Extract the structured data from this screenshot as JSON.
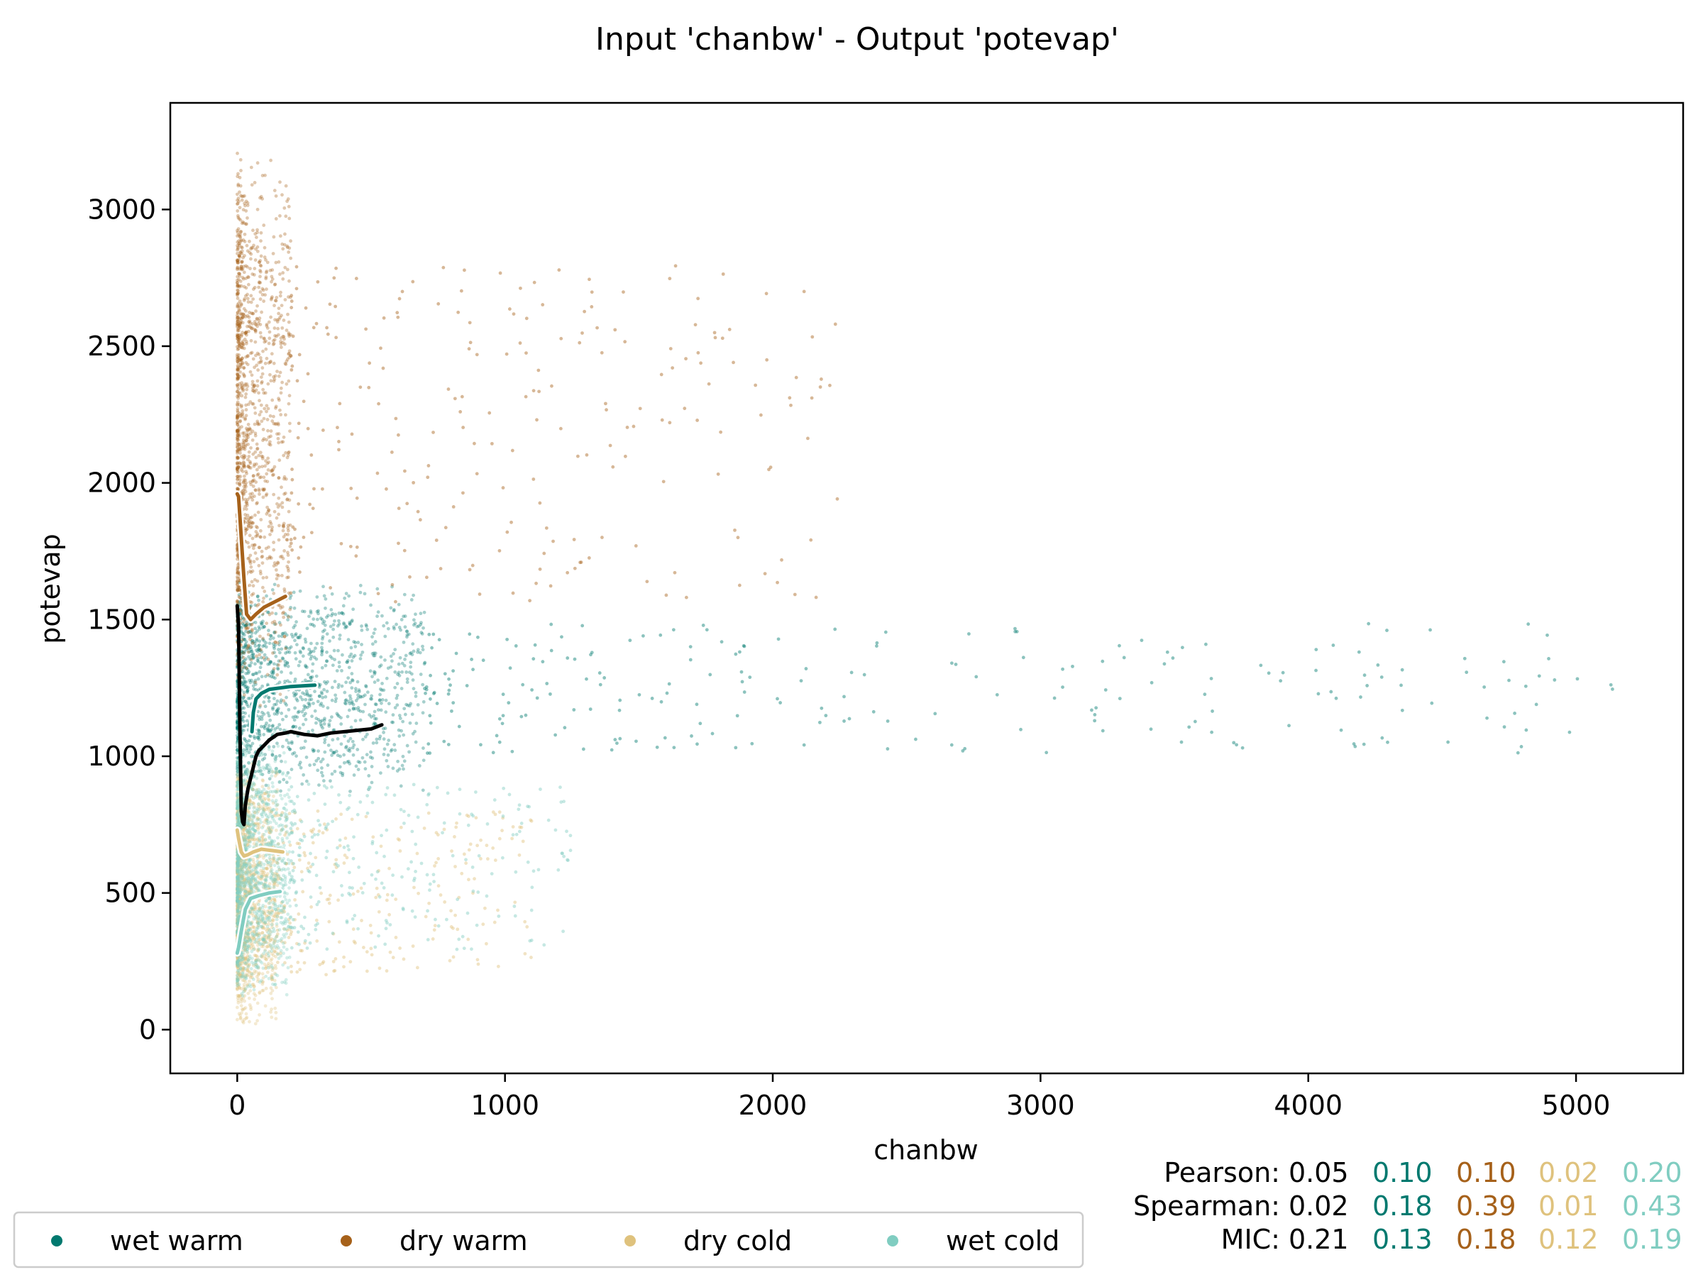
{
  "chart_data": {
    "type": "scatter",
    "title": "Input 'chanbw' - Output 'potevap'",
    "xlabel": "chanbw",
    "ylabel": "potevap",
    "xlim": [
      -250,
      5400
    ],
    "ylim": [
      -160,
      3390
    ],
    "xticks": [
      0,
      1000,
      2000,
      3000,
      4000,
      5000
    ],
    "yticks": [
      0,
      500,
      1000,
      1500,
      2000,
      2500,
      3000
    ],
    "grid": false,
    "legend_position": "bottom-left, below plot",
    "colors": {
      "wet_warm": "#01796f",
      "dry_warm": "#a6611a",
      "dry_cold": "#dfc27d",
      "wet_cold": "#80cdc1",
      "overall": "#000000"
    },
    "series": [
      {
        "name": "wet warm",
        "color": "#01796f",
        "point_cloud": {
          "x_range": [
            0,
            5150
          ],
          "y_range": [
            850,
            1650
          ],
          "dense_x_max": 700
        },
        "trend": {
          "x": [
            55,
            60,
            70,
            90,
            120,
            160,
            200,
            250,
            290
          ],
          "y": [
            1090,
            1160,
            1210,
            1230,
            1245,
            1250,
            1255,
            1258,
            1260
          ]
        }
      },
      {
        "name": "dry warm",
        "color": "#a6611a",
        "point_cloud": {
          "x_range": [
            0,
            2250
          ],
          "y_range": [
            1150,
            3220
          ],
          "dense_x_max": 200
        },
        "trend": {
          "x": [
            0,
            5,
            15,
            25,
            35,
            50,
            70,
            100,
            140,
            180
          ],
          "y": [
            1960,
            1950,
            1800,
            1650,
            1520,
            1500,
            1520,
            1545,
            1565,
            1585
          ]
        }
      },
      {
        "name": "dry cold",
        "color": "#dfc27d",
        "point_cloud": {
          "x_range": [
            0,
            1100
          ],
          "y_range": [
            0,
            1000
          ],
          "dense_x_max": 150
        },
        "trend": {
          "x": [
            0,
            5,
            15,
            25,
            40,
            60,
            90,
            130,
            170
          ],
          "y": [
            730,
            700,
            650,
            635,
            640,
            650,
            660,
            655,
            650
          ]
        }
      },
      {
        "name": "wet cold",
        "color": "#80cdc1",
        "point_cloud": {
          "x_range": [
            0,
            1250
          ],
          "y_range": [
            90,
            1100
          ],
          "dense_x_max": 200
        },
        "trend": {
          "x": [
            0,
            5,
            15,
            30,
            50,
            80,
            120,
            160
          ],
          "y": [
            280,
            300,
            360,
            440,
            480,
            490,
            500,
            505
          ]
        }
      },
      {
        "name": "",
        "color": "#000000",
        "trend": {
          "x": [
            0,
            5,
            10,
            15,
            20,
            25,
            30,
            40,
            50,
            60,
            70,
            80,
            100,
            120,
            150,
            180,
            200,
            250,
            300,
            350,
            400,
            450,
            500,
            540
          ],
          "y": [
            1550,
            1480,
            1100,
            800,
            760,
            750,
            820,
            880,
            920,
            960,
            1000,
            1020,
            1040,
            1060,
            1080,
            1085,
            1090,
            1080,
            1075,
            1085,
            1090,
            1095,
            1100,
            1115
          ]
        }
      }
    ],
    "stats": {
      "rows": [
        {
          "label": "Pearson:",
          "overall": "0.05",
          "values": [
            "0.10",
            "0.10",
            "0.02",
            "0.20"
          ]
        },
        {
          "label": "Spearman:",
          "overall": "0.02",
          "values": [
            "0.18",
            "0.39",
            "0.01",
            "0.43"
          ]
        },
        {
          "label": "MIC:",
          "overall": "0.21",
          "values": [
            "0.13",
            "0.18",
            "0.12",
            "0.19"
          ]
        }
      ]
    }
  }
}
